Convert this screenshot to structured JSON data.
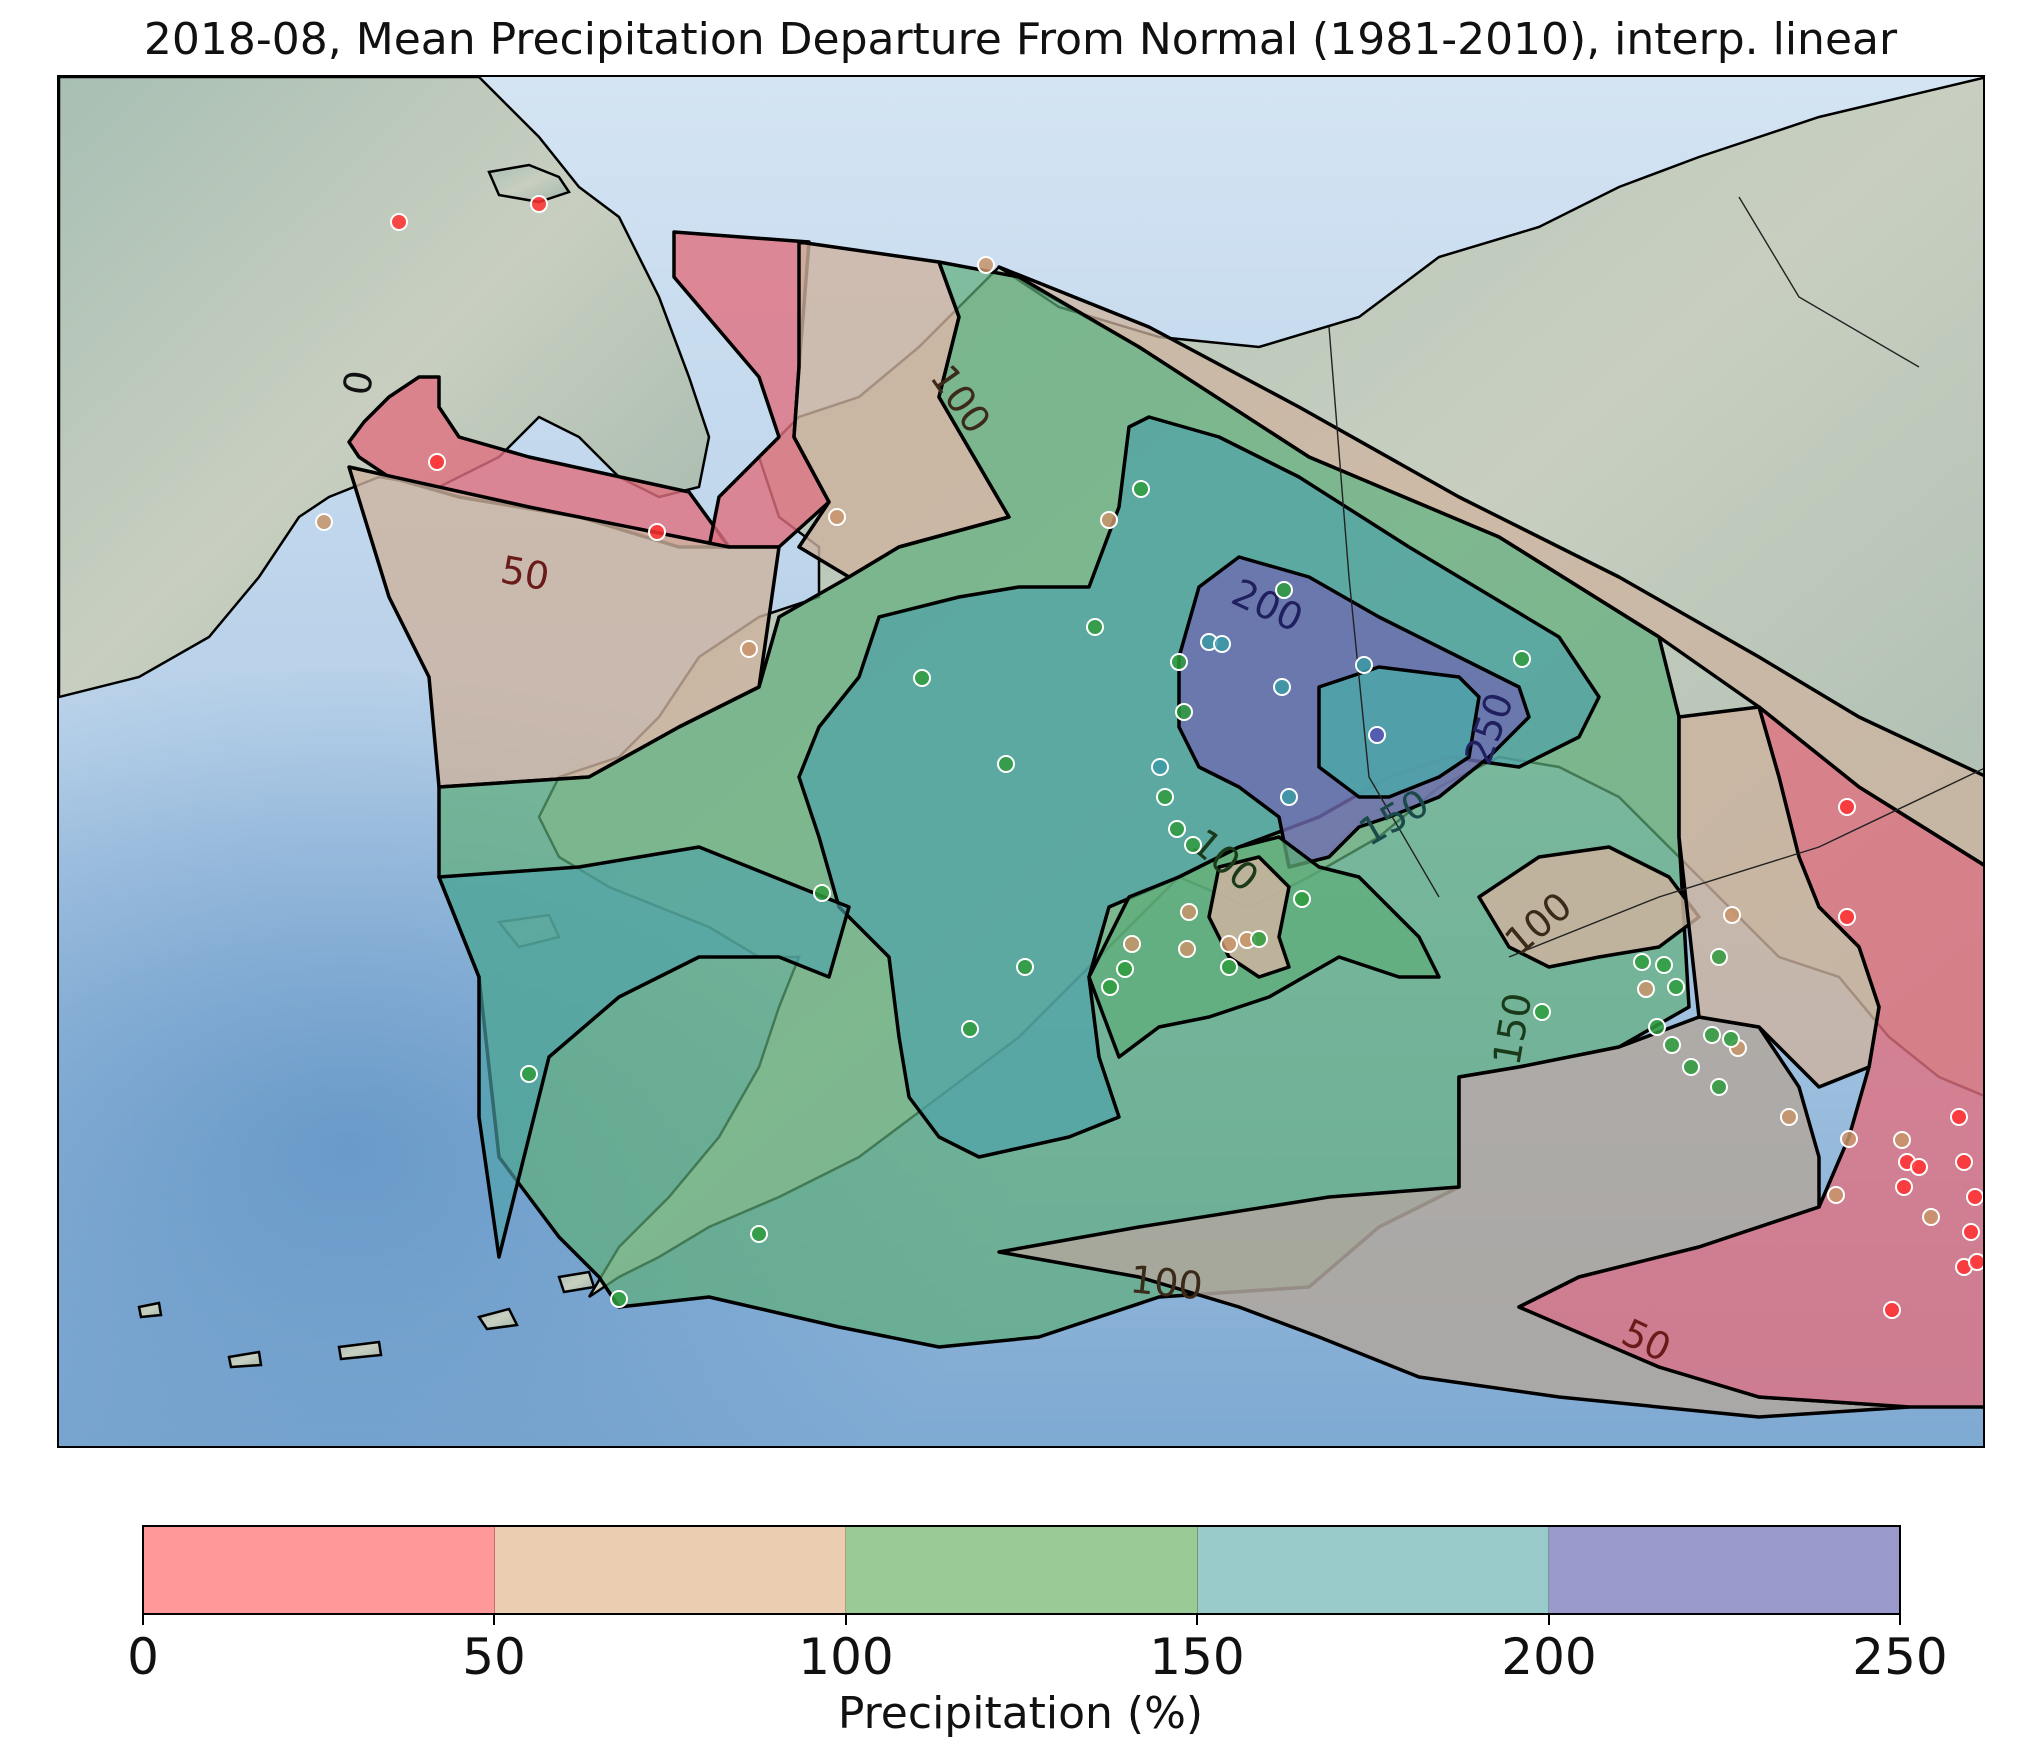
{
  "title": "2018-08, Mean Precipitation Departure From Normal (1981-2010), interp. linear",
  "colorbar": {
    "label": "Precipitation (%)",
    "ticks": [
      "0",
      "50",
      "100",
      "150",
      "200",
      "250"
    ],
    "bins": [
      {
        "range": "0-50",
        "color": "#ff9999"
      },
      {
        "range": "50-100",
        "color": "#ebcdb1"
      },
      {
        "range": "100-150",
        "color": "#9acb97"
      },
      {
        "range": "150-200",
        "color": "#9acbcb"
      },
      {
        "range": "200-250",
        "color": "#9a99cb"
      }
    ]
  },
  "contour_labels": {
    "c0": "0",
    "c50_nw": "50",
    "c100_n": "100",
    "c200": "200",
    "c250": "250",
    "c150_c": "150",
    "c100_c": "100",
    "c100_e": "100",
    "c150_e": "150",
    "c100_s": "100",
    "c50_se": "50"
  },
  "colors": {
    "ocean": "#8fb8dc",
    "land": "#b9c9c0",
    "red_fill": "#e0707f",
    "tan_fill": "#cdb39f",
    "green_fill": "#5fae7a",
    "teal_fill": "#4fa3a9",
    "purple_fill": "#6f6bb0",
    "station_red": "#ff3030",
    "station_tan": "#c8946a",
    "station_green": "#2e9b3c",
    "station_teal": "#3b9aa6",
    "station_purple": "#5551b0"
  }
}
